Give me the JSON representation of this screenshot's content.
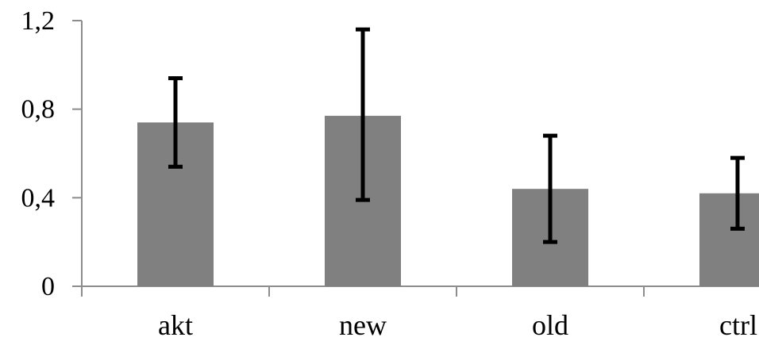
{
  "chart_data": {
    "type": "bar",
    "categories": [
      "akt",
      "new",
      "old",
      "ctrl"
    ],
    "values": [
      0.74,
      0.77,
      0.44,
      0.42
    ],
    "error_low": [
      0.54,
      0.39,
      0.2,
      0.26
    ],
    "error_high": [
      0.94,
      1.16,
      0.68,
      0.58
    ],
    "y_tick_labels": [
      "0",
      "0,4",
      "0,8",
      "1,2"
    ],
    "y_ticks": [
      0,
      0.4,
      0.8,
      1.2
    ],
    "ylim": [
      0,
      1.2
    ],
    "title": "",
    "xlabel": "",
    "ylabel": "",
    "grid": false,
    "bar_color": "#808080",
    "error_bar_color": "#000000"
  }
}
